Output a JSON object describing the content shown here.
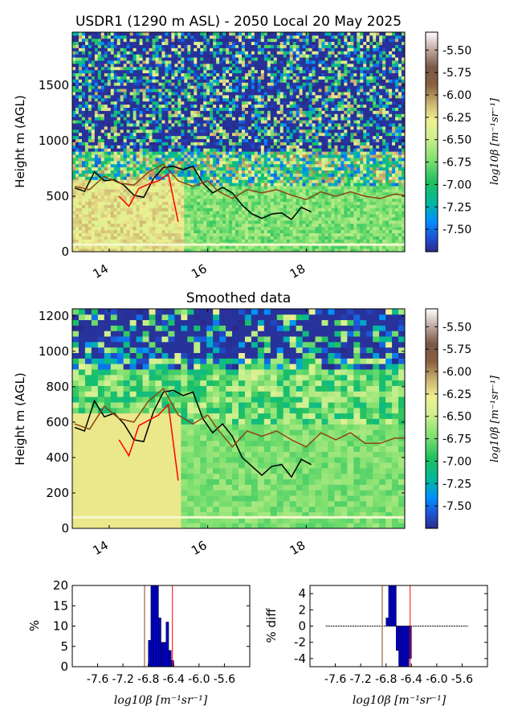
{
  "chart_data": [
    {
      "type": "heatmap",
      "title": "USDR1 (1290 m ASL) - 2050 Local 20 May 2025",
      "ylabel": "Height m (AGL)",
      "xlim": [
        13.25,
        20
      ],
      "ylim": [
        0,
        1980
      ],
      "x_ticks": [
        "14",
        "16",
        "18"
      ],
      "y_ticks": [
        "0",
        "500",
        "1000",
        "1500"
      ],
      "colorbar": {
        "label": "log10β [m⁻¹sr⁻¹]",
        "range": [
          -7.75,
          -5.3
        ],
        "ticks": [
          "-5.50",
          "-5.75",
          "-6.00",
          "-6.25",
          "-6.50",
          "-6.75",
          "-7.00",
          "-7.25",
          "-7.50"
        ]
      },
      "series": [
        {
          "color": "#000000",
          "x": [
            13.3,
            13.5,
            13.7,
            13.9,
            14.1,
            14.3,
            14.5,
            14.7,
            14.9,
            15.1,
            15.3,
            15.5,
            15.7,
            15.9,
            16.1,
            16.3,
            16.5,
            16.7,
            16.9,
            17.1,
            17.3,
            17.5,
            17.7,
            17.9,
            18.1
          ],
          "y": [
            575,
            545,
            720,
            640,
            650,
            600,
            510,
            490,
            660,
            760,
            770,
            740,
            770,
            620,
            530,
            580,
            530,
            420,
            340,
            300,
            340,
            350,
            290,
            400,
            360
          ]
        },
        {
          "color": "#ff0000",
          "x": [
            14.2,
            14.4,
            14.6,
            14.8,
            15.0,
            15.2,
            15.4
          ],
          "y": [
            500,
            410,
            570,
            610,
            640,
            700,
            270
          ]
        },
        {
          "color": "#8b4513",
          "x": [
            13.3,
            13.6,
            13.9,
            14.2,
            14.5,
            14.8,
            15.1,
            15.4,
            15.7,
            16.0,
            16.2,
            16.5,
            16.8,
            17.1,
            17.4,
            17.7,
            18.0,
            18.3,
            18.6,
            18.9,
            19.2,
            19.5,
            19.8,
            20.0
          ],
          "y": [
            590,
            560,
            680,
            620,
            600,
            720,
            790,
            640,
            590,
            640,
            550,
            480,
            560,
            530,
            560,
            510,
            470,
            540,
            500,
            540,
            500,
            480,
            520,
            510
          ]
        }
      ]
    },
    {
      "type": "heatmap",
      "title": "Smoothed data",
      "ylabel": "Height m (AGL)",
      "xlim": [
        13.25,
        20
      ],
      "ylim": [
        0,
        1240
      ],
      "x_ticks": [
        "14",
        "16",
        "18"
      ],
      "y_ticks": [
        "0",
        "200",
        "400",
        "600",
        "800",
        "1000",
        "1200"
      ],
      "colorbar": {
        "label": "log10β [m⁻¹sr⁻¹]",
        "range": [
          -7.75,
          -5.3
        ],
        "ticks": [
          "-5.50",
          "-5.75",
          "-6.00",
          "-6.25",
          "-6.50",
          "-6.75",
          "-7.00",
          "-7.25",
          "-7.50"
        ]
      },
      "series": [
        {
          "color": "#000000",
          "x": [
            13.3,
            13.5,
            13.7,
            13.9,
            14.1,
            14.3,
            14.5,
            14.7,
            14.9,
            15.1,
            15.3,
            15.5,
            15.7,
            15.9,
            16.1,
            16.3,
            16.5,
            16.7,
            16.9,
            17.1,
            17.3,
            17.5,
            17.7,
            17.9,
            18.1
          ],
          "y": [
            570,
            550,
            720,
            630,
            650,
            590,
            500,
            490,
            660,
            770,
            780,
            750,
            770,
            620,
            540,
            590,
            520,
            400,
            350,
            300,
            350,
            360,
            290,
            390,
            360
          ]
        },
        {
          "color": "#ff0000",
          "x": [
            14.2,
            14.4,
            14.6,
            14.8,
            15.0,
            15.2,
            15.4
          ],
          "y": [
            500,
            410,
            580,
            610,
            640,
            700,
            270
          ]
        },
        {
          "color": "#8b4513",
          "x": [
            13.3,
            13.6,
            13.9,
            14.2,
            14.5,
            14.8,
            15.1,
            15.4,
            15.7,
            16.0,
            16.2,
            16.5,
            16.8,
            17.1,
            17.4,
            17.7,
            18.0,
            18.3,
            18.6,
            18.9,
            19.2,
            19.5,
            19.8,
            20.0
          ],
          "y": [
            590,
            560,
            690,
            620,
            600,
            720,
            790,
            640,
            590,
            640,
            560,
            460,
            550,
            520,
            550,
            500,
            460,
            540,
            500,
            540,
            480,
            480,
            510,
            510
          ]
        }
      ]
    },
    {
      "type": "bar",
      "ylabel": "%",
      "xlabel": "log10β [m⁻¹sr⁻¹]",
      "xlim": [
        -8.0,
        -5.2
      ],
      "ylim": [
        0,
        20
      ],
      "x_ticks": [
        "-7.6",
        "-7.2",
        "-6.8",
        "-6.4",
        "-6.0",
        "-5.6"
      ],
      "y_ticks": [
        "0",
        "5",
        "10",
        "15",
        "20"
      ],
      "x": [
        -6.78,
        -6.74,
        -6.7,
        -6.66,
        -6.62,
        -6.58,
        -6.54,
        -6.5,
        -6.46,
        -6.42
      ],
      "values": [
        6.5,
        20,
        20,
        20,
        12,
        6,
        6,
        11,
        4,
        1.5
      ],
      "vlines": [
        {
          "x": -6.86,
          "color": "#8b4513"
        },
        {
          "x": -6.42,
          "color": "#ff0000"
        }
      ]
    },
    {
      "type": "bar",
      "ylabel": "% diff",
      "xlabel": "log10β [m⁻¹sr⁻¹]",
      "xlim": [
        -8.0,
        -5.2
      ],
      "ylim": [
        -5,
        5
      ],
      "x_ticks": [
        "-7.6",
        "-7.2",
        "-6.8",
        "-6.4",
        "-6.0",
        "-5.6"
      ],
      "y_ticks": [
        "-4",
        "-2",
        "0",
        "2",
        "4"
      ],
      "x": [
        -6.78,
        -6.74,
        -6.7,
        -6.66,
        -6.62,
        -6.58,
        -6.54,
        -6.5,
        -6.46,
        -6.42
      ],
      "values": [
        1,
        5,
        5,
        5,
        -3,
        -5,
        -5,
        -5,
        -5,
        -4
      ],
      "vlines": [
        {
          "x": -6.86,
          "color": "#8b4513"
        },
        {
          "x": -6.42,
          "color": "#ff0000"
        }
      ]
    }
  ]
}
